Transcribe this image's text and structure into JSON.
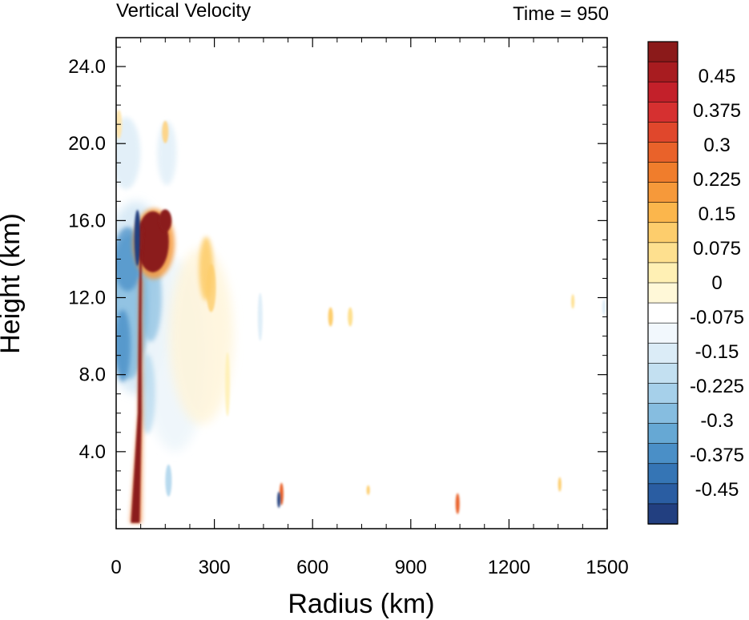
{
  "chart_data": {
    "type": "heatmap",
    "title": "Vertical Velocity",
    "subtitle": "Time = 950",
    "xlabel": "Radius (km)",
    "ylabel": "Height (km)",
    "xlim": [
      0,
      1500
    ],
    "ylim": [
      0,
      25.5
    ],
    "x_ticks": [
      0,
      300,
      600,
      900,
      1200,
      1500
    ],
    "x_tick_labels": [
      "0",
      "300",
      "600",
      "900",
      "1200",
      "1500"
    ],
    "y_ticks": [
      4,
      8,
      12,
      16,
      20,
      24
    ],
    "y_tick_labels": [
      "4.0",
      "8.0",
      "12.0",
      "16.0",
      "20.0",
      "24.0"
    ],
    "colorbar": {
      "min": -0.525,
      "max": 0.525,
      "step": 0.025,
      "labels": [
        "0.45",
        "0.375",
        "0.3",
        "0.225",
        "0.15",
        "0.075",
        "0",
        "-0.075",
        "-0.15",
        "-0.225",
        "-0.3",
        "-0.375",
        "-0.45"
      ],
      "label_values": [
        0.45,
        0.375,
        0.3,
        0.225,
        0.15,
        0.075,
        0,
        -0.075,
        -0.15,
        -0.225,
        -0.3,
        -0.375,
        -0.45
      ],
      "colors_top_to_bottom": [
        "#8b1a1a",
        "#a81c20",
        "#c3202a",
        "#d63030",
        "#e0472c",
        "#e9622a",
        "#f07d2c",
        "#f6993a",
        "#fbb64c",
        "#fdcd6c",
        "#fee08f",
        "#fff0b4",
        "#fff8d8",
        "#ffffff",
        "#f2f8fd",
        "#dbecf7",
        "#c3e0f1",
        "#a6d0ea",
        "#86bde0",
        "#66a8d4",
        "#4a8fc7",
        "#3575b5",
        "#2a5da2",
        "#223f80"
      ]
    },
    "features": [
      {
        "name": "strong updraft (eyewall)",
        "type": "updraft",
        "radius_km": [
          45,
          75
        ],
        "height_km": [
          0.3,
          17
        ],
        "value": 0.55
      },
      {
        "name": "upper updraft",
        "type": "updraft",
        "radius_km": [
          75,
          165
        ],
        "height_km": [
          12.5,
          17
        ],
        "value": 0.55
      },
      {
        "name": "eye downdraft",
        "type": "downdraft",
        "radius_km": [
          0,
          90
        ],
        "height_km": [
          6,
          16.5
        ],
        "value": -0.3
      },
      {
        "name": "narrow eye downdraft",
        "type": "downdraft",
        "radius_km": [
          55,
          75
        ],
        "height_km": [
          13,
          17
        ],
        "value": -0.5
      },
      {
        "name": "weak updraft band",
        "type": "updraft",
        "radius_km": [
          250,
          300
        ],
        "height_km": [
          11,
          15.5
        ],
        "value": 0.12
      },
      {
        "name": "low-level updraft",
        "type": "updraft",
        "radius_km": [
          500,
          520
        ],
        "height_km": [
          0.5,
          3
        ],
        "value": 0.3
      },
      {
        "name": "low-level updraft",
        "type": "updraft",
        "radius_km": [
          1040,
          1050
        ],
        "height_km": [
          0.5,
          2.2
        ],
        "value": 0.3
      }
    ]
  }
}
